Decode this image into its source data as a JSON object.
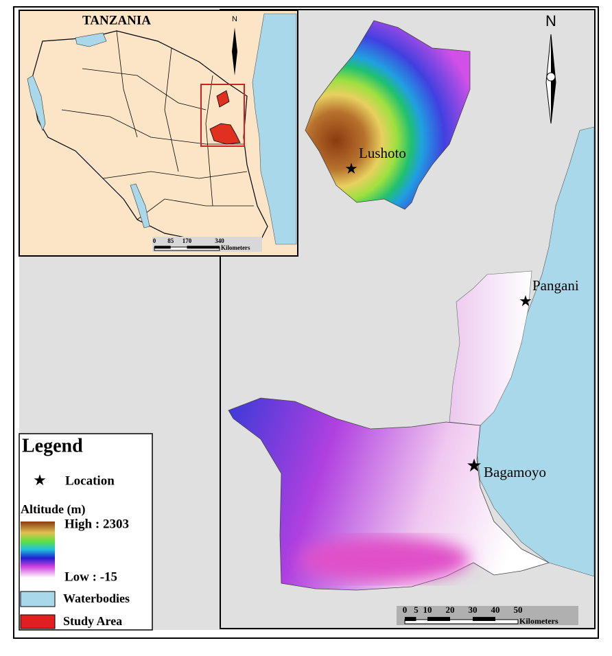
{
  "inset": {
    "title": "TANZANIA",
    "north": "N",
    "scale": {
      "ticks": [
        0,
        85,
        170,
        340
      ],
      "unit": "Kilometers"
    }
  },
  "main": {
    "north": "N",
    "places": [
      "Lushoto",
      "Pangani",
      "Bagamoyo"
    ],
    "scale": {
      "ticks": [
        0,
        5,
        10,
        20,
        30,
        40,
        50
      ],
      "unit": "Kilometers"
    }
  },
  "legend": {
    "title": "Legend",
    "location": "Location",
    "altitude": "Altitude (m)",
    "high": "High : 2303",
    "low": "Low : -15",
    "water": "Waterbodies",
    "study": "Study Area"
  }
}
